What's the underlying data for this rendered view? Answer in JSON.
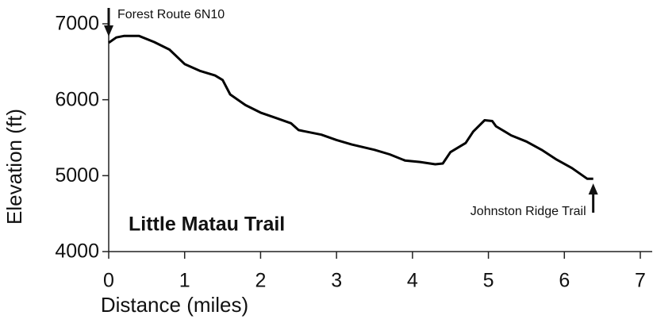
{
  "chart_data": {
    "type": "line",
    "title": "Little Matau Trail",
    "x_label": "Distance (miles)",
    "y_label": "Elevation (ft)",
    "x": [
      0,
      0.1,
      0.2,
      0.4,
      0.6,
      0.8,
      1.0,
      1.2,
      1.4,
      1.5,
      1.6,
      1.8,
      2.0,
      2.2,
      2.4,
      2.5,
      2.8,
      3.0,
      3.2,
      3.5,
      3.7,
      3.9,
      4.1,
      4.3,
      4.4,
      4.5,
      4.7,
      4.8,
      4.95,
      5.05,
      5.1,
      5.3,
      5.5,
      5.7,
      5.9,
      6.1,
      6.3,
      6.38
    ],
    "values": [
      6750,
      6820,
      6840,
      6840,
      6760,
      6660,
      6470,
      6380,
      6320,
      6260,
      6070,
      5930,
      5830,
      5760,
      5690,
      5600,
      5540,
      5470,
      5410,
      5340,
      5280,
      5200,
      5180,
      5150,
      5160,
      5310,
      5430,
      5580,
      5730,
      5720,
      5650,
      5530,
      5450,
      5340,
      5210,
      5100,
      4960,
      4960
    ],
    "color": "#000000",
    "xlim": [
      0,
      7
    ],
    "xticks": [
      0,
      1,
      2,
      3,
      4,
      5,
      6,
      7
    ],
    "ylim": [
      4000,
      7000
    ],
    "yticks": [
      4000,
      5000,
      6000,
      7000
    ],
    "grid": false,
    "annotations": [
      "Forest Route 6N10",
      "Johnston Ridge Trail"
    ]
  }
}
